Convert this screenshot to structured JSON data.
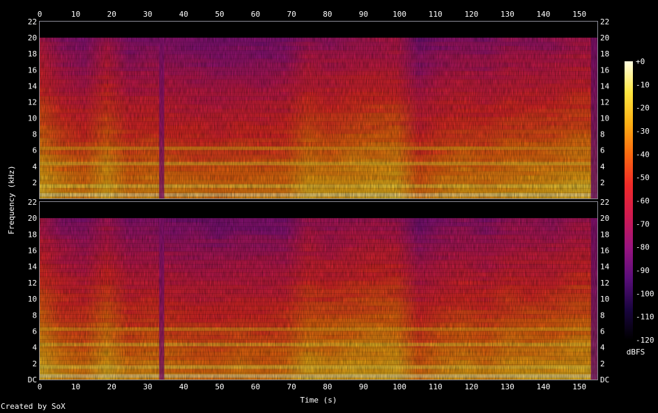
{
  "chart_data": {
    "type": "heatmap",
    "title": "",
    "xlabel": "Time (s)",
    "ylabel": "Frequency (kHz)",
    "xlim": [
      0,
      155
    ],
    "ylim": [
      0,
      22
    ],
    "x_ticks": [
      0,
      10,
      20,
      30,
      40,
      50,
      60,
      70,
      80,
      90,
      100,
      110,
      120,
      130,
      140,
      150
    ],
    "channels": [
      {
        "y_ticks": [
          "22",
          "20",
          "18",
          "16",
          "14",
          "12",
          "10",
          "8",
          "6",
          "4",
          "2"
        ]
      },
      {
        "y_ticks": [
          "22",
          "20",
          "18",
          "16",
          "14",
          "12",
          "10",
          "8",
          "6",
          "4",
          "2",
          "DC"
        ]
      }
    ],
    "colorbar": {
      "label": "dBFS",
      "range": [
        -120,
        0
      ],
      "ticks": [
        "+0",
        "-10",
        "-20",
        "-30",
        "-40",
        "-50",
        "-60",
        "-70",
        "-80",
        "-90",
        "-100",
        "-110",
        "-120"
      ]
    },
    "cutoff_khz": 20,
    "colors": {
      "stop0": "#000000",
      "stop1": "#1a0540",
      "stop2": "#5a0e7a",
      "stop3": "#9a1480",
      "stop4": "#d01a50",
      "stop5": "#f02a28",
      "stop6": "#fb6a10",
      "stop7": "#fdb014",
      "stop8": "#ffe640",
      "stop9": "#fffde0",
      "frame": "#8a8a96"
    }
  },
  "footer": {
    "credit": "Created by SoX"
  }
}
